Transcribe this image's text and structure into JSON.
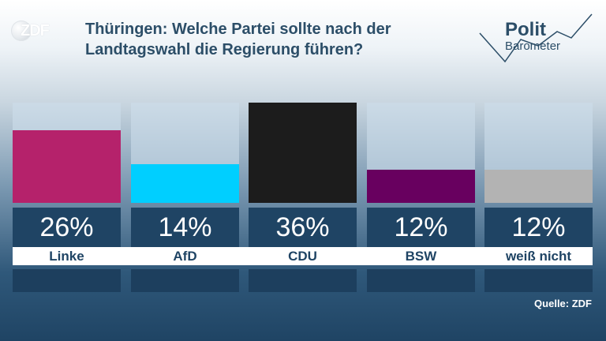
{
  "header": {
    "logo": "ZDF",
    "title": "Thüringen: Welche Partei sollte nach der Landtagswahl die Regierung führen?",
    "brand_line1": "Polit",
    "brand_line2": "Barometer"
  },
  "source": "Quelle: ZDF",
  "chart_data": {
    "type": "bar",
    "title": "Thüringen: Welche Partei sollte nach der Landtagswahl die Regierung führen?",
    "categories": [
      "Linke",
      "AfD",
      "CDU",
      "BSW",
      "weiß nicht"
    ],
    "values": [
      26,
      14,
      36,
      12,
      12
    ],
    "value_labels": [
      "26%",
      "14%",
      "36%",
      "12%",
      "12%"
    ],
    "colors": [
      "#b5226b",
      "#00cfff",
      "#1c1c1c",
      "#68005f",
      "#b3b3b3"
    ],
    "ylim": [
      0,
      36
    ],
    "grid": false,
    "legend": "none"
  }
}
